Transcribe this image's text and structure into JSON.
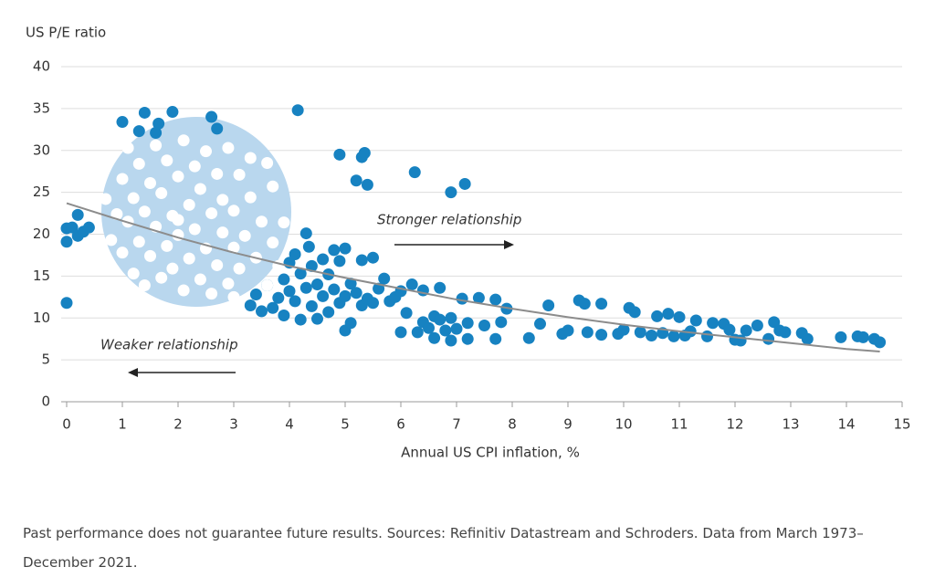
{
  "chart_data": {
    "type": "scatter",
    "y_label": "US P/E ratio",
    "x_label": "Annual US CPI inflation, %",
    "annotations": [
      "Stronger relationship",
      "Weaker relationship"
    ],
    "xlim": [
      0,
      15
    ],
    "ylim": [
      0,
      40
    ],
    "xticks": [
      0,
      1,
      2,
      3,
      4,
      5,
      6,
      7,
      8,
      9,
      10,
      11,
      12,
      13,
      14,
      15
    ],
    "yticks": [
      0,
      5,
      10,
      15,
      20,
      25,
      30,
      35,
      40
    ],
    "grid": true,
    "series": [
      {
        "color": "#1782c1",
        "x": [
          0,
          0,
          0,
          0.1,
          0.2,
          0.2,
          0.3,
          0.4,
          1.0,
          1.3,
          1.4,
          1.6,
          1.65,
          1.9,
          2.6,
          2.7,
          4.15,
          4.9,
          5.3,
          5.35,
          5.2,
          5.4,
          6.25,
          6.9,
          7.15,
          3.3,
          3.4,
          3.5,
          3.6,
          3.7,
          3.8,
          3.9,
          3.9,
          4.0,
          4.0,
          4.1,
          4.1,
          4.2,
          4.2,
          4.3,
          4.3,
          4.35,
          4.4,
          4.4,
          4.5,
          4.5,
          4.6,
          4.6,
          4.7,
          4.7,
          4.8,
          4.8,
          4.9,
          4.9,
          5.0,
          5.0,
          5.0,
          5.1,
          5.1,
          5.2,
          5.3,
          5.3,
          5.4,
          5.5,
          5.5,
          5.6,
          5.7,
          5.8,
          5.9,
          6.0,
          6.1,
          6.0,
          6.2,
          6.3,
          6.4,
          6.4,
          6.5,
          6.6,
          6.6,
          6.7,
          6.7,
          6.8,
          6.9,
          6.9,
          7.0,
          7.1,
          7.2,
          7.2,
          7.4,
          7.5,
          7.7,
          7.7,
          7.8,
          7.9,
          8.3,
          8.5,
          8.65,
          8.9,
          9.0,
          9.2,
          9.3,
          9.35,
          9.6,
          9.6,
          9.9,
          10.0,
          10.1,
          10.2,
          10.3,
          10.5,
          10.6,
          10.7,
          10.8,
          10.9,
          11.0,
          11.1,
          11.2,
          11.3,
          11.5,
          11.6,
          11.8,
          11.9,
          12.0,
          12.1,
          12.2,
          12.4,
          12.6,
          12.7,
          12.8,
          12.9,
          13.2,
          13.3,
          13.9,
          14.2,
          14.3,
          14.5,
          14.6
        ],
        "values": [
          11.8,
          19.1,
          20.7,
          20.8,
          19.8,
          22.3,
          20.3,
          20.8,
          33.4,
          32.3,
          34.5,
          32.1,
          33.2,
          34.6,
          34,
          32.6,
          34.8,
          29.5,
          29.2,
          29.7,
          26.4,
          25.9,
          27.4,
          25,
          26,
          11.5,
          12.8,
          10.8,
          13.9,
          11.2,
          12.4,
          14.6,
          10.3,
          13.2,
          16.6,
          12.0,
          17.6,
          15.3,
          9.8,
          20.1,
          13.6,
          18.5,
          11.4,
          16.2,
          14.0,
          9.9,
          12.6,
          17.0,
          15.2,
          10.7,
          13.4,
          18.1,
          11.8,
          16.8,
          12.6,
          8.5,
          18.3,
          14.1,
          9.4,
          13.0,
          16.9,
          11.5,
          12.3,
          17.2,
          11.8,
          13.5,
          14.7,
          12.0,
          12.5,
          13.2,
          10.6,
          8.3,
          14.0,
          8.3,
          13.3,
          9.5,
          8.8,
          10.2,
          7.6,
          13.6,
          9.8,
          8.5,
          7.3,
          10.0,
          8.7,
          12.3,
          9.4,
          7.5,
          12.4,
          9.1,
          7.5,
          12.2,
          9.5,
          11.1,
          7.6,
          9.3,
          11.5,
          8.1,
          8.5,
          12.1,
          11.7,
          8.3,
          11.7,
          8.0,
          8.1,
          8.6,
          11.2,
          10.7,
          8.3,
          7.9,
          10.2,
          8.2,
          10.5,
          7.8,
          10.1,
          7.9,
          8.4,
          9.7,
          7.8,
          9.4,
          9.3,
          8.6,
          7.4,
          7.3,
          8.5,
          9.1,
          7.5,
          9.5,
          8.5,
          8.3,
          8.2,
          7.5,
          7.7,
          7.8,
          7.7,
          7.5,
          7.1
        ]
      },
      {
        "color": "#ffffff",
        "x": [
          0.7,
          0.8,
          0.9,
          1.0,
          1.0,
          1.1,
          1.1,
          1.2,
          1.2,
          1.3,
          1.3,
          1.4,
          1.4,
          1.5,
          1.5,
          1.6,
          1.6,
          1.7,
          1.7,
          1.8,
          1.8,
          1.9,
          1.9,
          2.0,
          2.0,
          2.1,
          2.1,
          2.2,
          2.2,
          2.3,
          2.3,
          2.4,
          2.4,
          2.5,
          2.5,
          2.6,
          2.6,
          2.7,
          2.7,
          2.8,
          2.8,
          2.9,
          2.9,
          3.0,
          3.0,
          3.1,
          3.1,
          3.2,
          3.3,
          3.3,
          3.4,
          3.5,
          3.6,
          3.6,
          3.7,
          3.7,
          3.8,
          3.9,
          3.0,
          2.0
        ],
        "values": [
          24.2,
          19.3,
          22.4,
          17.8,
          26.6,
          21.5,
          30.3,
          15.3,
          24.3,
          19.1,
          28.4,
          13.9,
          22.7,
          17.4,
          26.1,
          30.6,
          20.9,
          14.8,
          24.9,
          18.6,
          28.8,
          22.2,
          15.9,
          26.9,
          19.9,
          13.3,
          31.2,
          23.5,
          17.1,
          28.1,
          20.6,
          14.6,
          25.4,
          18.3,
          29.9,
          22.5,
          12.9,
          16.3,
          27.2,
          20.2,
          24.1,
          14.1,
          30.3,
          18.4,
          22.8,
          27.1,
          15.9,
          19.8,
          29.1,
          24.4,
          17.2,
          21.5,
          28.5,
          13.9,
          19.0,
          25.7,
          16.2,
          21.4,
          12.5,
          21.7
        ]
      }
    ],
    "trendline": {
      "color": "#8c8c8c",
      "x": [
        0,
        1,
        2,
        3,
        4,
        5,
        6,
        7,
        8,
        9,
        10,
        11,
        12,
        13,
        14,
        14.6
      ],
      "y": [
        23.7,
        21.6,
        19.6,
        17.8,
        16.2,
        14.8,
        13.5,
        12.2,
        11.1,
        10.1,
        9.2,
        8.4,
        7.7,
        7.0,
        6.3,
        6.0
      ]
    }
  },
  "footnote": "Past performance does not guarantee future results. Sources: Refinitiv Datastream and Schroders. Data from March 1973–December 2021."
}
